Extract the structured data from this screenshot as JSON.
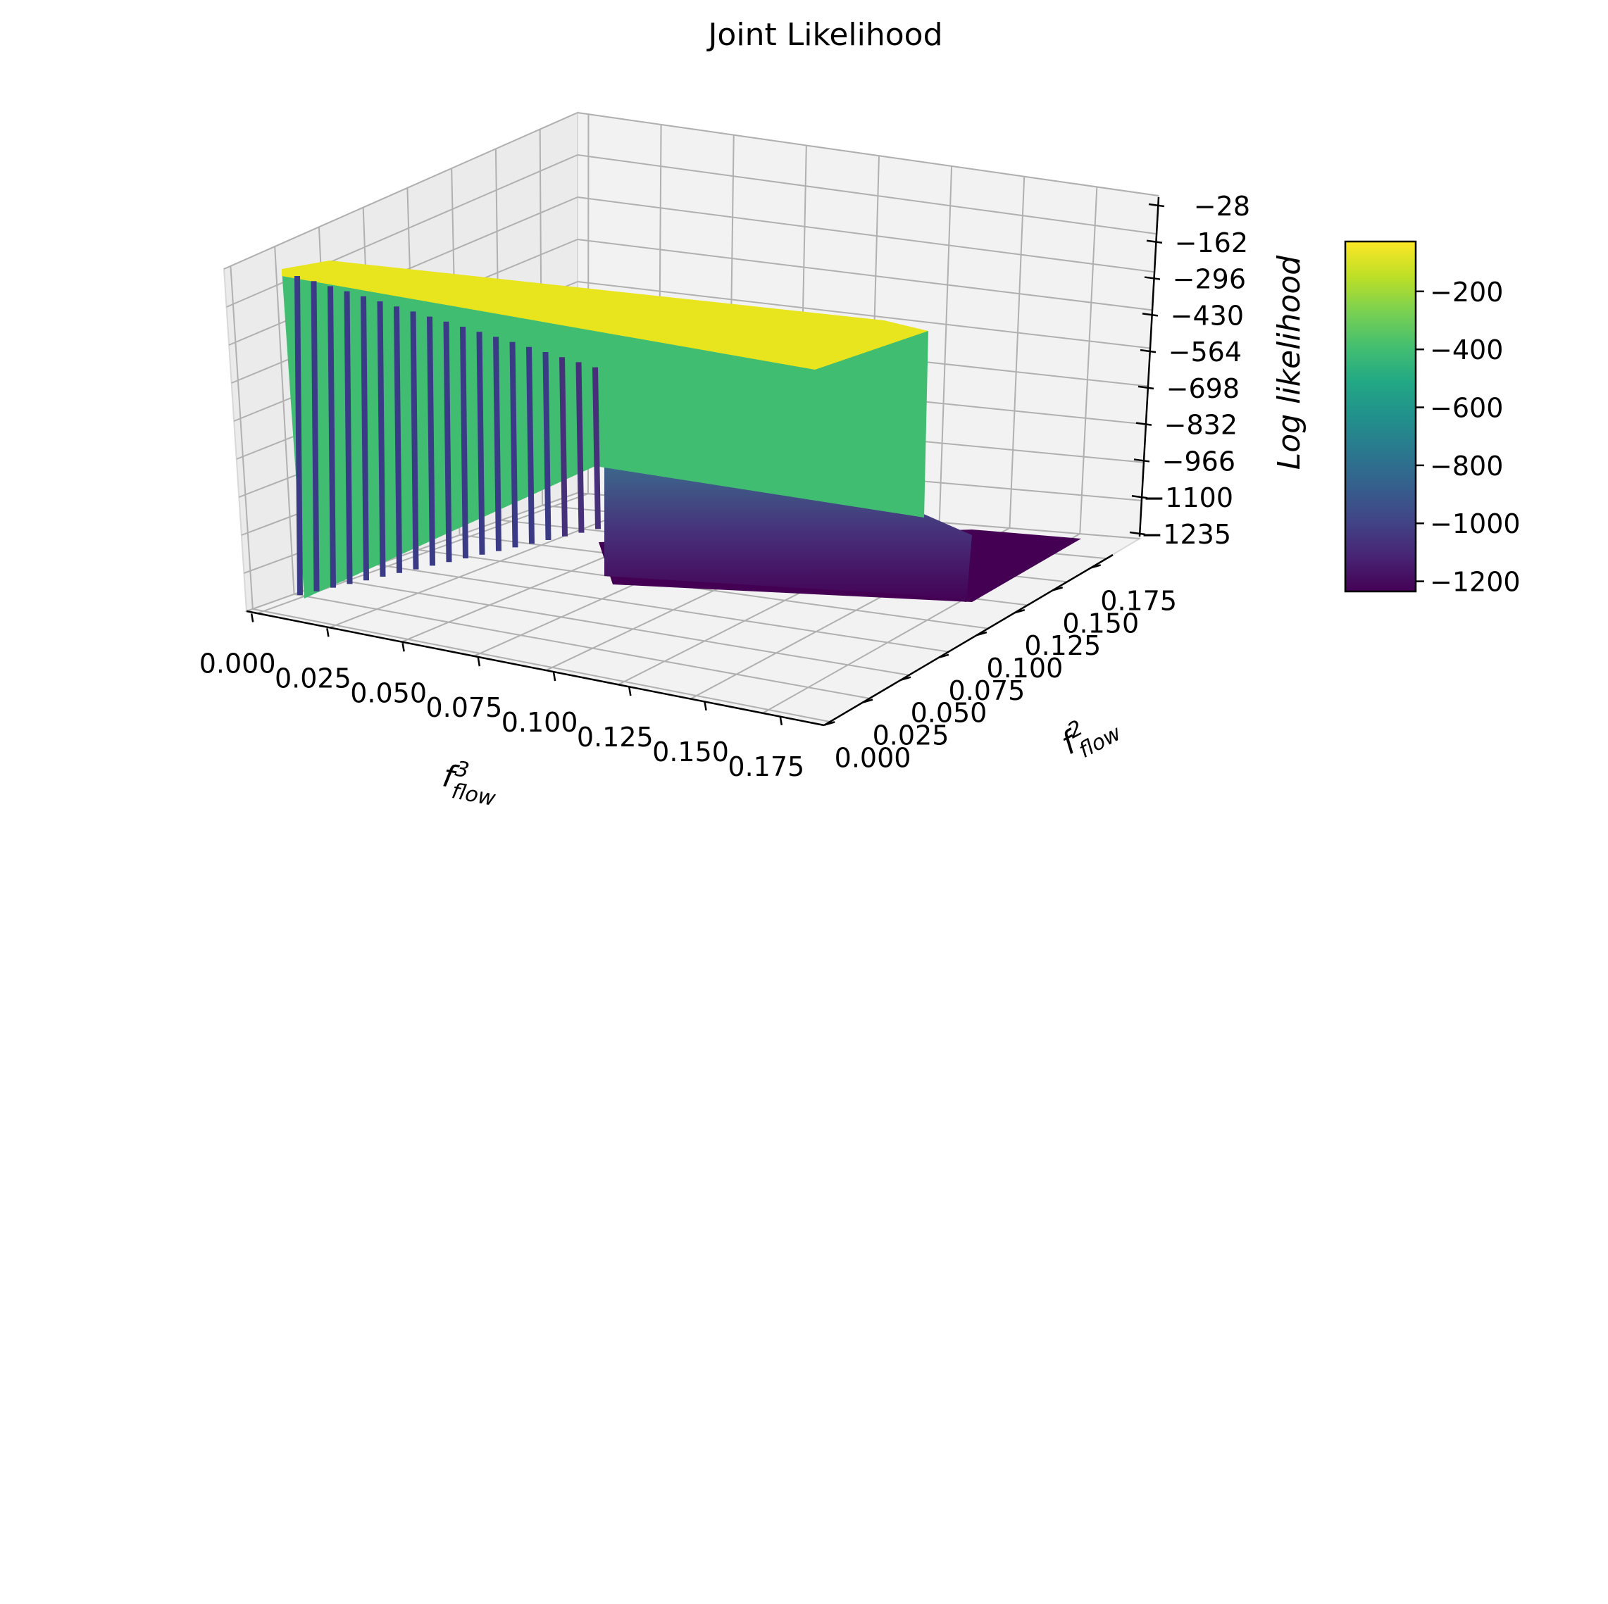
{
  "chart_data": {
    "type": "surface3d",
    "title": "Joint Likelihood",
    "xlabel": {
      "base": "f",
      "sup": "3",
      "sub": "flow"
    },
    "ylabel": {
      "base": "f",
      "sup": "2",
      "sub": "flow"
    },
    "zlabel": "Log likelihood",
    "x_ticks": [
      "0.000",
      "0.025",
      "0.050",
      "0.075",
      "0.100",
      "0.125",
      "0.150",
      "0.175"
    ],
    "y_ticks": [
      "0.000",
      "0.025",
      "0.050",
      "0.075",
      "0.100",
      "0.125",
      "0.150",
      "0.175"
    ],
    "z_ticks": [
      "−28",
      "−162",
      "−296",
      "−430",
      "−564",
      "−698",
      "−832",
      "−966",
      "−1100",
      "−1235"
    ],
    "x_range": [
      0,
      0.19
    ],
    "y_range": [
      0,
      0.19
    ],
    "z_range": [
      -1235,
      -28
    ],
    "colormap": "viridis",
    "colorbar_ticks": [
      "−200",
      "−400",
      "−600",
      "−800",
      "−1000",
      "−1200"
    ],
    "colorbar_range": [
      -1235,
      -28
    ],
    "surface_levels": {
      "plateau_top": -40,
      "vertical_wall": -380,
      "floor": -1235
    },
    "grid": true
  },
  "colors": {
    "pane": "#f2f2f2",
    "grid": "#b0b0b0",
    "wall": "#41bd72",
    "plateau": "#e8e41e",
    "floor": "#440154"
  }
}
